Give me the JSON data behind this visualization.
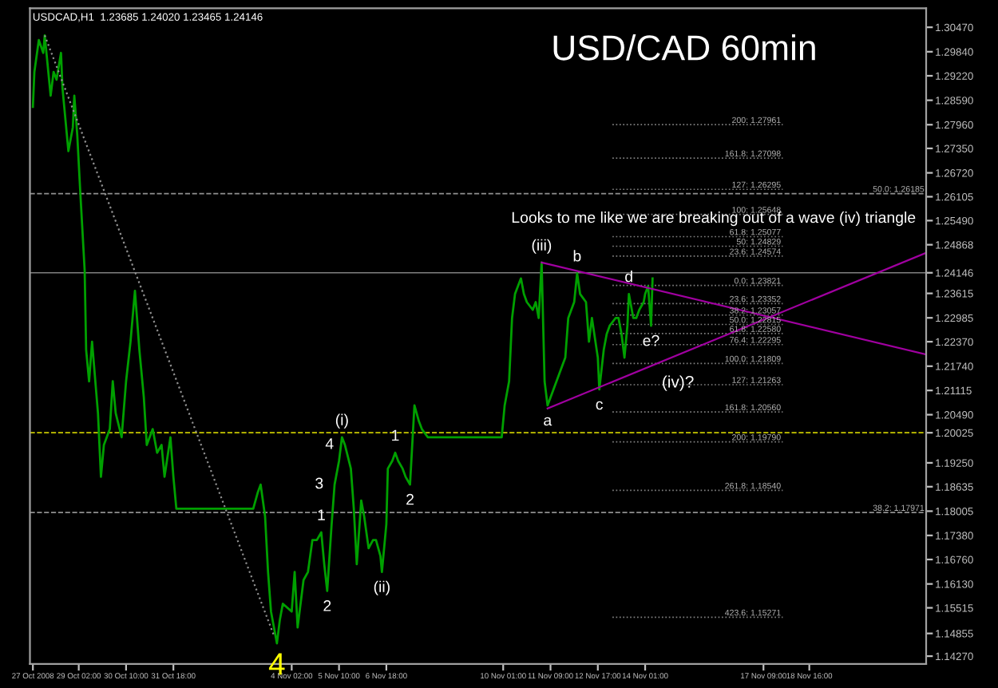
{
  "chart_data": {
    "type": "line",
    "title": "USD/CAD 60min",
    "annotations": [
      "USDCAD,H1  1.23685 1.24020 1.23465 1.24146",
      "Looks to me like we are breaking out of a wave (iv) triangle",
      "(iv)?",
      {
        "text": "4",
        "x": "2008-11-03T16:00",
        "y": 1.146
      },
      {
        "text": "1",
        "x": "2008-11-04T22:00",
        "y": 1.1746
      },
      {
        "text": "2",
        "x": "2008-11-05T02:00",
        "y": 1.1595
      },
      {
        "text": "3",
        "x": "2008-11-05T07:00",
        "y": 1.1869
      },
      {
        "text": "(i)",
        "x": "2008-11-05T12:00",
        "y": 1.1991
      },
      {
        "text": "4",
        "x": "2008-11-05T14:00",
        "y": 1.1971
      },
      {
        "text": "(ii)",
        "x": "2008-11-06T15:00",
        "y": 1.1644
      },
      {
        "text": "1",
        "x": "2008-11-07T00:00",
        "y": 1.1951
      },
      {
        "text": "2",
        "x": "2008-11-07T10:00",
        "y": 1.1869
      },
      {
        "text": "(iii)",
        "x": "2008-11-11T03:00",
        "y": 1.2441
      },
      {
        "text": "a",
        "x": "2008-11-11T07:00",
        "y": 1.2073
      },
      {
        "text": "b",
        "x": "2008-11-12T03:00",
        "y": 1.2413
      },
      {
        "text": "c",
        "x": "2008-11-12T18:00",
        "y": 1.2114
      },
      {
        "text": "d",
        "x": "2008-11-13T14:00",
        "y": 1.236
      },
      {
        "text": "e?",
        "x": "2008-11-14T05:00",
        "y": 1.2278
      }
    ],
    "series": [
      {
        "color": "#00a000",
        "x": [
          "2008-10-27T19:00",
          "2008-10-27T20:00",
          "2008-10-27T23:00",
          "2008-10-28T02:00",
          "2008-10-28T03:00",
          "2008-10-28T07:00",
          "2008-10-28T09:00",
          "2008-10-28T11:00",
          "2008-10-28T14:00",
          "2008-10-28T15:00",
          "2008-10-28T19:00",
          "2008-10-28T22:00",
          "2008-10-28T23:00",
          "2008-10-29T01:00",
          "2008-10-29T03:00",
          "2008-10-29T06:00",
          "2008-10-29T07:00",
          "2008-10-29T09:00",
          "2008-10-29T11:00",
          "2008-10-29T15:00",
          "2008-10-29T17:00",
          "2008-10-29T19:00",
          "2008-10-29T23:00",
          "2008-10-30T01:00",
          "2008-10-30T03:00",
          "2008-10-30T07:00",
          "2008-10-30T10:00",
          "2008-10-30T13:00",
          "2008-10-30T16:00",
          "2008-10-30T19:00",
          "2008-10-30T22:00",
          "2008-10-31T00:00",
          "2008-10-31T04:00",
          "2008-10-31T07:00",
          "2008-10-31T10:00",
          "2008-10-31T12:00",
          "2008-10-31T16:00",
          "2008-10-31T18:00",
          "2008-10-31T20:00",
          "2008-11-03T00:00",
          "2008-11-03T03:00",
          "2008-11-03T05:00",
          "2008-11-03T08:00",
          "2008-11-03T10:00",
          "2008-11-03T12:00",
          "2008-11-03T16:00",
          "2008-11-03T18:00",
          "2008-11-03T20:00",
          "2008-11-04T02:00",
          "2008-11-04T04:00",
          "2008-11-04T06:00",
          "2008-11-04T10:00",
          "2008-11-04T13:00",
          "2008-11-04T16:00",
          "2008-11-04T19:00",
          "2008-11-04T22:00",
          "2008-11-05T00:00",
          "2008-11-05T02:00",
          "2008-11-05T05:00",
          "2008-11-05T07:00",
          "2008-11-05T10:00",
          "2008-11-05T12:00",
          "2008-11-05T14:00",
          "2008-11-05T18:00",
          "2008-11-05T20:00",
          "2008-11-05T22:00",
          "2008-11-06T01:00",
          "2008-11-06T03:00",
          "2008-11-06T06:00",
          "2008-11-06T09:00",
          "2008-11-06T11:00",
          "2008-11-06T14:00",
          "2008-11-06T15:00",
          "2008-11-06T18:00",
          "2008-11-06T19:00",
          "2008-11-06T22:00",
          "2008-11-07T00:00",
          "2008-11-07T02:00",
          "2008-11-07T05:00",
          "2008-11-07T07:00",
          "2008-11-07T10:00",
          "2008-11-07T13:00",
          "2008-11-07T16:00",
          "2008-11-07T18:00",
          "2008-11-07T22:00",
          "2008-11-10T00:00",
          "2008-11-10T02:00",
          "2008-11-10T05:00",
          "2008-11-10T07:00",
          "2008-11-10T09:00",
          "2008-11-10T13:00",
          "2008-11-10T15:00",
          "2008-11-10T17:00",
          "2008-11-10T21:00",
          "2008-11-10T23:00",
          "2008-11-11T01:00",
          "2008-11-11T03:00",
          "2008-11-11T05:00",
          "2008-11-11T07:00",
          "2008-11-11T11:00",
          "2008-11-11T15:00",
          "2008-11-11T19:00",
          "2008-11-11T21:00",
          "2008-11-12T01:00",
          "2008-11-12T03:00",
          "2008-11-12T05:00",
          "2008-11-12T09:00",
          "2008-11-12T11:00",
          "2008-11-12T13:00",
          "2008-11-12T17:00",
          "2008-11-12T18:00",
          "2008-11-12T21:00",
          "2008-11-12T23:00",
          "2008-11-13T01:00",
          "2008-11-13T05:00",
          "2008-11-13T07:00",
          "2008-11-13T09:00",
          "2008-11-13T11:00",
          "2008-11-13T13:00",
          "2008-11-13T14:00",
          "2008-11-13T17:00",
          "2008-11-13T19:00",
          "2008-11-13T21:00",
          "2008-11-14T00:00",
          "2008-11-14T01:00",
          "2008-11-14T03:00",
          "2008-11-14T05:00",
          "2008-11-14T06:00"
        ],
        "values": [
          1.2842,
          1.2932,
          1.3014,
          1.2981,
          1.3026,
          1.2871,
          1.2932,
          1.2912,
          1.2981,
          1.2891,
          1.2728,
          1.2789,
          1.2871,
          1.2769,
          1.2625,
          1.2421,
          1.2216,
          1.2135,
          1.2237,
          1.2053,
          1.1889,
          1.1971,
          1.2012,
          1.2135,
          1.2053,
          1.1991,
          1.2135,
          1.2237,
          1.2368,
          1.2216,
          1.2094,
          1.1971,
          1.2012,
          1.1951,
          1.1971,
          1.1889,
          1.1991,
          1.1889,
          1.1807,
          1.1807,
          1.1848,
          1.1869,
          1.1787,
          1.1644,
          1.1542,
          1.146,
          1.1521,
          1.1562,
          1.1542,
          1.1644,
          1.1501,
          1.1623,
          1.1644,
          1.1726,
          1.1726,
          1.1746,
          1.1664,
          1.1595,
          1.1767,
          1.1869,
          1.193,
          1.1991,
          1.1971,
          1.191,
          1.1807,
          1.1664,
          1.1828,
          1.1787,
          1.1705,
          1.1726,
          1.1726,
          1.1685,
          1.1644,
          1.1767,
          1.191,
          1.193,
          1.1951,
          1.193,
          1.191,
          1.1889,
          1.1869,
          1.2073,
          1.2032,
          1.2012,
          1.1991,
          1.1991,
          1.2073,
          1.2135,
          1.2298,
          1.236,
          1.24,
          1.236,
          1.2339,
          1.2319,
          1.2339,
          1.2298,
          1.2441,
          1.2135,
          1.2073,
          1.2114,
          1.2155,
          1.2196,
          1.2298,
          1.2339,
          1.2413,
          1.236,
          1.2339,
          1.2237,
          1.2298,
          1.2196,
          1.2114,
          1.2216,
          1.2257,
          1.2278,
          1.2298,
          1.2298,
          1.2257,
          1.2196,
          1.2278,
          1.236,
          1.2298,
          1.2298,
          1.2319,
          1.2339,
          1.236,
          1.238,
          1.2278,
          1.24
        ]
      },
      {
        "color": "#a000a0",
        "x": [
          "2008-11-11T03:00",
          "2008-11-21T23:00"
        ],
        "values": [
          1.2441,
          1.2204
        ]
      },
      {
        "color": "#a000a0",
        "x": [
          "2008-11-11T07:00",
          "2008-11-21T23:00"
        ],
        "values": [
          1.2065,
          1.2466
        ]
      },
      {
        "color": "#909090",
        "line_style": "dotted",
        "x": [
          "2008-10-28T03:00",
          "2008-11-03T14:00"
        ],
        "values": [
          1.3026,
          1.148
        ]
      }
    ],
    "ref_lines": [
      {
        "axis": "y",
        "value": 1.26185,
        "label": "50.0: 1.26185",
        "color": "#909090",
        "line_style": "dashed"
      },
      {
        "axis": "y",
        "value": 1.17971,
        "label": "38.2: 1.17971",
        "color": "#909090",
        "line_style": "dashed"
      },
      {
        "axis": "y",
        "value": 1.20025,
        "color": "#c8c800",
        "line_style": "dashed"
      },
      {
        "axis": "y",
        "value": 1.24146,
        "color": "#808080",
        "line_style": "solid"
      },
      {
        "axis": "y",
        "value": 1.27961,
        "label": "200: 1.27961",
        "color": "#808080",
        "line_style": "dotted"
      },
      {
        "axis": "y",
        "value": 1.27098,
        "label": "161.8: 1.27098",
        "color": "#808080",
        "line_style": "dotted"
      },
      {
        "axis": "y",
        "value": 1.26295,
        "label": "127: 1.26295",
        "color": "#808080",
        "line_style": "dotted"
      },
      {
        "axis": "y",
        "value": 1.25648,
        "label": "100: 1.25648",
        "color": "#808080",
        "line_style": "dotted"
      },
      {
        "axis": "y",
        "value": 1.25077,
        "label": "61.8: 1.25077",
        "color": "#808080",
        "line_style": "dotted"
      },
      {
        "axis": "y",
        "value": 1.24829,
        "label": "50: 1.24829",
        "color": "#808080",
        "line_style": "dotted"
      },
      {
        "axis": "y",
        "value": 1.24574,
        "label": "23.6: 1.24574",
        "color": "#808080",
        "line_style": "dotted"
      },
      {
        "axis": "y",
        "value": 1.23821,
        "label": "0.0: 1.23821",
        "color": "#808080",
        "line_style": "dotted"
      },
      {
        "axis": "y",
        "value": 1.23352,
        "label": "23.6: 1.23352",
        "color": "#808080",
        "line_style": "dotted"
      },
      {
        "axis": "y",
        "value": 1.23057,
        "label": "38.2: 1.23057",
        "color": "#808080",
        "line_style": "dotted"
      },
      {
        "axis": "y",
        "value": 1.22815,
        "label": "50.0: 1.22815",
        "color": "#808080",
        "line_style": "dotted"
      },
      {
        "axis": "y",
        "value": 1.2258,
        "label": "61.8: 1.22580",
        "color": "#808080",
        "line_style": "dotted"
      },
      {
        "axis": "y",
        "value": 1.22295,
        "label": "76.4: 1.22295",
        "color": "#808080",
        "line_style": "dotted"
      },
      {
        "axis": "y",
        "value": 1.21809,
        "label": "100.0: 1.21809",
        "color": "#808080",
        "line_style": "dotted"
      },
      {
        "axis": "y",
        "value": 1.21263,
        "label": "127: 1.21263",
        "color": "#808080",
        "line_style": "dotted"
      },
      {
        "axis": "y",
        "value": 1.2056,
        "label": "161.8: 1.20560",
        "color": "#808080",
        "line_style": "dotted"
      },
      {
        "axis": "y",
        "value": 1.1979,
        "label": "200: 1.19790",
        "color": "#808080",
        "line_style": "dotted"
      },
      {
        "axis": "y",
        "value": 1.1854,
        "label": "261.8: 1.18540",
        "color": "#808080",
        "line_style": "dotted"
      },
      {
        "axis": "y",
        "value": 1.15271,
        "label": "423.6: 1.15271",
        "color": "#808080",
        "line_style": "dotted"
      }
    ],
    "xlim": [
      "2008-10-27T17:00",
      "2008-11-21T23:00"
    ],
    "xticks": [
      {
        "value": "2008-10-27T19:00",
        "label": "27 Oct 2008"
      },
      {
        "value": "2008-10-29T02:00",
        "label": "29 Oct 02:00"
      },
      {
        "value": "2008-10-30T10:00",
        "label": "30 Oct 10:00"
      },
      {
        "value": "2008-10-31T18:00",
        "label": "31 Oct 18:00"
      },
      {
        "value": "2008-11-04T02:00",
        "label": "4 Nov 02:00"
      },
      {
        "value": "2008-11-05T10:00",
        "label": "5 Nov 10:00"
      },
      {
        "value": "2008-11-06T18:00",
        "label": "6 Nov 18:00"
      },
      {
        "value": "2008-11-10T01:00",
        "label": "10 Nov 01:00"
      },
      {
        "value": "2008-11-11T09:00",
        "label": "11 Nov 09:00"
      },
      {
        "value": "2008-11-12T17:00",
        "label": "12 Nov 17:00"
      },
      {
        "value": "2008-11-14T01:00",
        "label": "14 Nov 01:00"
      },
      {
        "value": "2008-11-17T09:00",
        "label": "17 Nov 09:00"
      },
      {
        "value": "2008-11-18T16:00",
        "label": "18 Nov 16:00"
      }
    ],
    "ylim": [
      1.1407,
      1.3096
    ],
    "yticks": [
      {
        "value": 1.3047,
        "label": "1.30470"
      },
      {
        "value": 1.2984,
        "label": "1.29840"
      },
      {
        "value": 1.2922,
        "label": "1.29220"
      },
      {
        "value": 1.2859,
        "label": "1.28590"
      },
      {
        "value": 1.2796,
        "label": "1.27960"
      },
      {
        "value": 1.2735,
        "label": "1.27350"
      },
      {
        "value": 1.2672,
        "label": "1.26720"
      },
      {
        "value": 1.26105,
        "label": "1.26105"
      },
      {
        "value": 1.2549,
        "label": "1.25490"
      },
      {
        "value": 1.24868,
        "label": "1.24868"
      },
      {
        "value": 1.24146,
        "label": "1.24146"
      },
      {
        "value": 1.23615,
        "label": "1.23615"
      },
      {
        "value": 1.22985,
        "label": "1.22985"
      },
      {
        "value": 1.2237,
        "label": "1.22370"
      },
      {
        "value": 1.2174,
        "label": "1.21740"
      },
      {
        "value": 1.21115,
        "label": "1.21115"
      },
      {
        "value": 1.2049,
        "label": "1.20490"
      },
      {
        "value": 1.20025,
        "label": "1.20025"
      },
      {
        "value": 1.1925,
        "label": "1.19250"
      },
      {
        "value": 1.18635,
        "label": "1.18635"
      },
      {
        "value": 1.18005,
        "label": "1.18005"
      },
      {
        "value": 1.1738,
        "label": "1.17380"
      },
      {
        "value": 1.1676,
        "label": "1.16760"
      },
      {
        "value": 1.1613,
        "label": "1.16130"
      },
      {
        "value": 1.15515,
        "label": "1.15515"
      },
      {
        "value": 1.14855,
        "label": "1.14855"
      },
      {
        "value": 1.1427,
        "label": "1.14270"
      }
    ],
    "grid": false,
    "legend": false
  }
}
